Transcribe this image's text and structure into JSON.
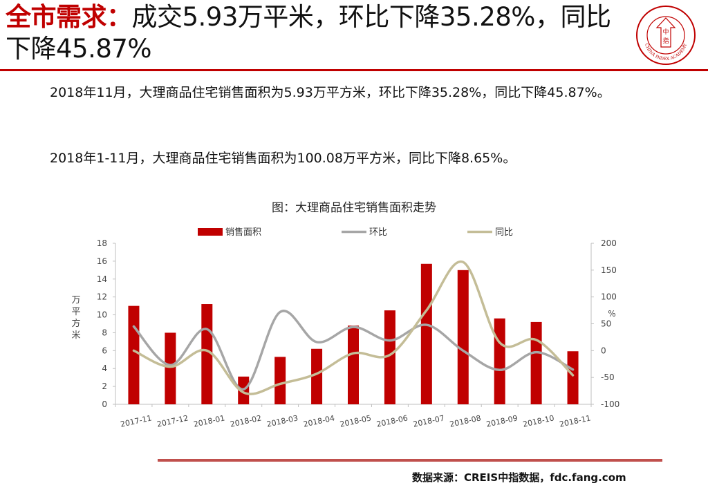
{
  "header": {
    "title_keyword": "全市需求：",
    "title_rest": "成交5.93万平米，环比下降35.28%，同比下降45.87%",
    "logo_center_1": "中",
    "logo_center_2": "指",
    "logo_ring_text": "CHINA INDEX ACADEMY"
  },
  "body": {
    "paragraph_1": "2018年11月，大理商品住宅销售面积为5.93万平方米，环比下降35.28%，同比下降45.87%。",
    "paragraph_2": "2018年1-11月，大理商品住宅销售面积为100.08万平方米，同比下降8.65%。"
  },
  "chart_title": "图：大理商品住宅销售面积走势",
  "chart_data": {
    "type": "bar",
    "categories": [
      "2017-11",
      "2017-12",
      "2018-01",
      "2018-02",
      "2018-03",
      "2018-04",
      "2018-05",
      "2018-06",
      "2018-07",
      "2018-08",
      "2018-09",
      "2018-10",
      "2018-11"
    ],
    "series": [
      {
        "name": "销售面积",
        "type": "bar",
        "axis": "left",
        "color": "#c00000",
        "values": [
          11.0,
          8.0,
          11.2,
          3.1,
          5.3,
          6.2,
          8.8,
          10.5,
          15.7,
          15.0,
          9.6,
          9.2,
          5.93
        ]
      },
      {
        "name": "环比",
        "type": "line",
        "axis": "right",
        "color": "#a6a6a6",
        "values": [
          45,
          -27,
          40,
          -72,
          72,
          16,
          44,
          19,
          48,
          0,
          -36,
          -3,
          -35.28
        ]
      },
      {
        "name": "同比",
        "type": "line",
        "axis": "right",
        "color": "#c4bd97",
        "values": [
          0,
          -30,
          0,
          -78,
          -62,
          -43,
          -5,
          -8,
          75,
          165,
          15,
          20,
          -45.87
        ]
      }
    ],
    "ylabel_left": "万平方米",
    "ylabel_right": "%",
    "ylim_left": [
      0,
      18
    ],
    "ylim_right": [
      -100,
      200
    ],
    "yticks_left": [
      0,
      2,
      4,
      6,
      8,
      10,
      12,
      14,
      16,
      18
    ],
    "yticks_right": [
      -100,
      -50,
      0,
      50,
      100,
      150,
      200
    ],
    "legend_position": "top",
    "grid": false
  },
  "footer": {
    "source": "数据来源：CREIS中指数据，fdc.fang.com"
  }
}
